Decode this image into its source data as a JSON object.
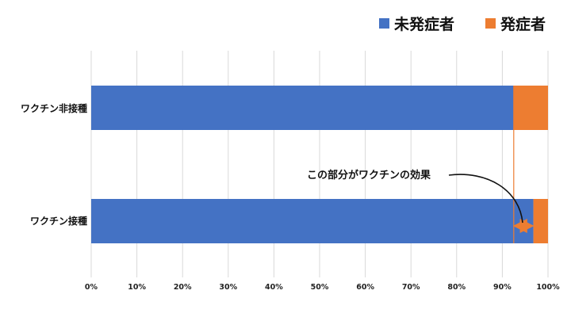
{
  "chart_data": {
    "type": "stacked-bar-horizontal-100",
    "categories": [
      "ワクチン非接種",
      "ワクチン接種"
    ],
    "series": [
      {
        "name": "未発症者",
        "color": "#4472C4",
        "values": [
          92.5,
          96.8
        ]
      },
      {
        "name": "発症者",
        "color": "#ED7D31",
        "values": [
          7.5,
          3.2
        ]
      }
    ],
    "x_ticks": [
      "0%",
      "10%",
      "20%",
      "30%",
      "40%",
      "50%",
      "60%",
      "70%",
      "80%",
      "90%",
      "100%"
    ],
    "xlim": [
      0,
      100
    ],
    "grid": true,
    "legend_position": "top-right",
    "annotation": {
      "text": "この部分がワクチンの効果",
      "from_value": 92.5,
      "to_value": 96.8,
      "color": "#ED7D31"
    }
  }
}
